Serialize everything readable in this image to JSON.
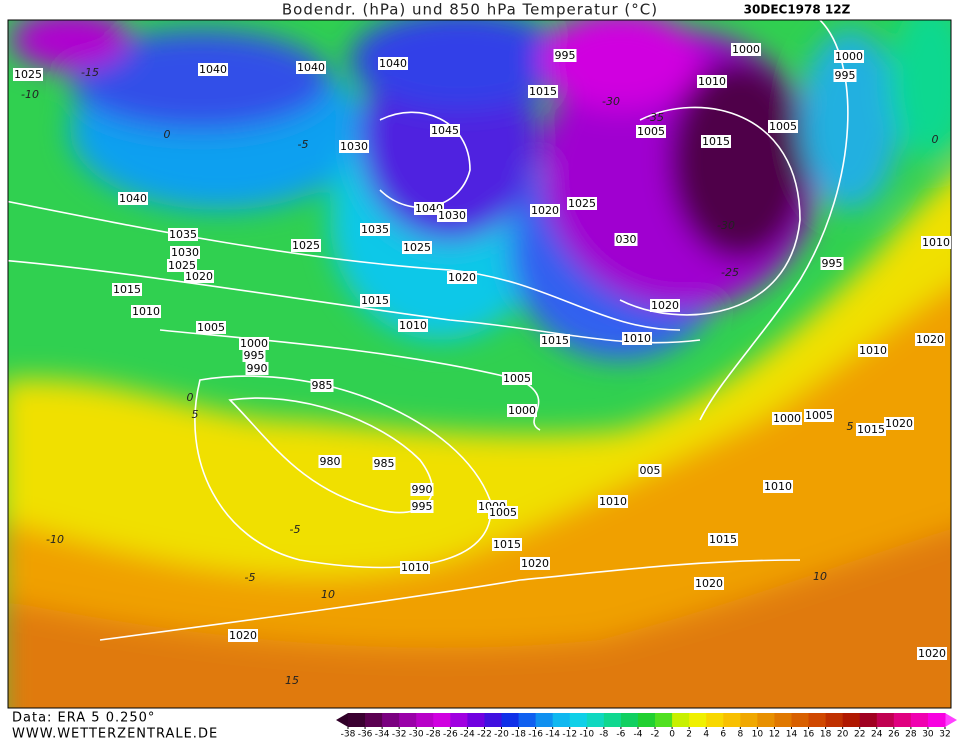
{
  "header": {
    "title": "Bodendr. (hPa) und 850 hPa Temperatur (°C)",
    "date": "30DEC1978 12Z"
  },
  "footer": {
    "source": "Data: ERA 5 0.250°",
    "website": "WWW.WETTERZENTRALE.DE"
  },
  "isobar_labels": [
    "1025",
    "1040",
    "1040",
    "1040",
    "995",
    "1000",
    "1000",
    "995",
    "1010",
    "1015",
    "1045",
    "1005",
    "1015",
    "1005",
    "1030",
    "1040",
    "1040",
    "1030",
    "1020",
    "1025",
    "1035",
    "1035",
    "030",
    "1025",
    "1025",
    "1030",
    "1025",
    "1020",
    "1010",
    "995",
    "1020",
    "1015",
    "1015",
    "1020",
    "1010",
    "1005",
    "1010",
    "1015",
    "1010",
    "1000",
    "995",
    "990",
    "1010",
    "1020",
    "985",
    "1005",
    "1000",
    "1000",
    "1005",
    "1015",
    "1020",
    "980",
    "985",
    "005",
    "1010",
    "990",
    "995",
    "1000",
    "1005",
    "1010",
    "1015",
    "1015",
    "1020",
    "1010",
    "1020",
    "1020",
    "1020"
  ],
  "temperature_labels": [
    "-15",
    "-10",
    "0",
    "-5",
    "-30",
    "-35",
    "-30",
    "-25",
    "0",
    "-5",
    "5",
    "10",
    "-5",
    "-10",
    "15",
    "10",
    "5",
    "0"
  ],
  "colorbar": {
    "ticks": [
      -38,
      -36,
      -34,
      -32,
      -30,
      -28,
      -26,
      -24,
      -22,
      -20,
      -18,
      -16,
      -14,
      -12,
      -10,
      -8,
      -6,
      -4,
      -2,
      0,
      2,
      4,
      6,
      8,
      10,
      12,
      14,
      16,
      18,
      20,
      22,
      24,
      26,
      28,
      30,
      32
    ],
    "colors": [
      "#3a0030",
      "#5a0050",
      "#7a0080",
      "#9a00a8",
      "#b800c8",
      "#d000e0",
      "#a000e0",
      "#7000e0",
      "#4010e0",
      "#1030e8",
      "#1060f0",
      "#1090f0",
      "#10b8f0",
      "#10d0e8",
      "#10d8c0",
      "#10d890",
      "#10d060",
      "#20d030",
      "#50e020",
      "#c8f000",
      "#f0f000",
      "#f8d800",
      "#f8c000",
      "#f0a800",
      "#e89000",
      "#e07800",
      "#d86000",
      "#d04800",
      "#c03000",
      "#b01800",
      "#a00020",
      "#c00050",
      "#e00080",
      "#f000b0",
      "#f800e0"
    ],
    "low_color": "#300028",
    "high_color": "#ff40ff"
  }
}
